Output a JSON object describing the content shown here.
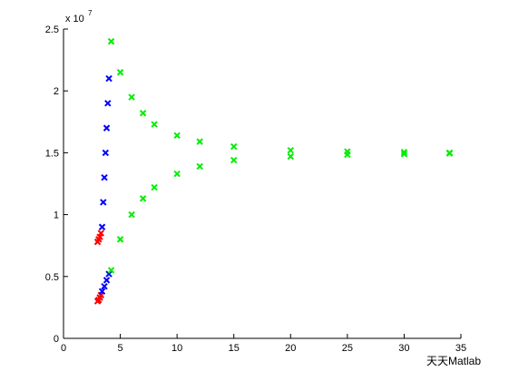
{
  "chart_data": {
    "type": "scatter",
    "y_multiplier_base": "x 10",
    "y_multiplier_exponent": "7",
    "watermark": "天天Matlab",
    "xlim": [
      0,
      35
    ],
    "xticks": [
      0,
      5,
      10,
      15,
      20,
      25,
      30,
      35
    ],
    "ylim": [
      0,
      2.5
    ],
    "yticks": [
      0,
      0.5,
      1,
      1.5,
      2,
      2.5
    ],
    "series": [
      {
        "color": "#ff0000",
        "x": [
          3.0,
          3.1,
          3.2,
          3.3
        ],
        "y": [
          0.3,
          0.31,
          0.33,
          0.35
        ]
      },
      {
        "color": "#ff0000",
        "x": [
          3.0,
          3.1,
          3.2,
          3.3
        ],
        "y": [
          0.78,
          0.8,
          0.82,
          0.85
        ]
      },
      {
        "color": "#0000ff",
        "x": [
          3.4,
          3.6,
          3.8,
          4.0
        ],
        "y": [
          0.38,
          0.42,
          0.47,
          0.52
        ]
      },
      {
        "color": "#0000ff",
        "x": [
          3.4,
          3.5,
          3.6,
          3.7,
          3.8,
          3.9,
          4.0
        ],
        "y": [
          0.9,
          1.1,
          1.3,
          1.5,
          1.7,
          1.9,
          2.1
        ]
      },
      {
        "color": "#00ee00",
        "x": [
          4.2,
          5,
          6,
          7,
          8,
          10,
          12,
          15,
          20,
          25,
          30,
          34
        ],
        "y": [
          2.4,
          2.15,
          1.95,
          1.82,
          1.73,
          1.64,
          1.59,
          1.55,
          1.52,
          1.51,
          1.505,
          1.5
        ]
      },
      {
        "color": "#00ee00",
        "x": [
          4.2,
          5,
          6,
          7,
          8,
          10,
          12,
          15,
          20,
          25,
          30,
          34
        ],
        "y": [
          0.55,
          0.8,
          1.0,
          1.13,
          1.22,
          1.33,
          1.39,
          1.44,
          1.47,
          1.485,
          1.49,
          1.495
        ]
      }
    ]
  }
}
